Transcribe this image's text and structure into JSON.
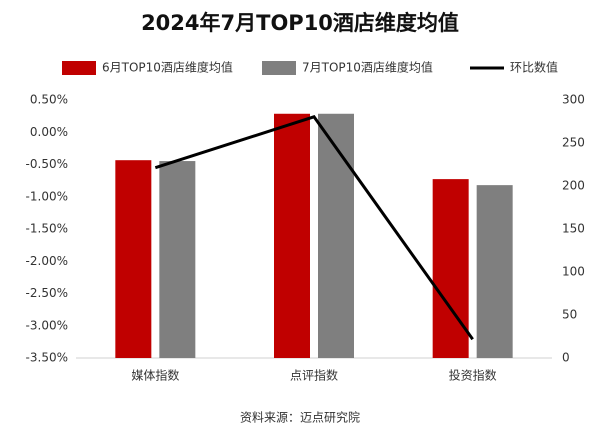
{
  "chart_data": {
    "type": "bar",
    "title": "2024年7月TOP10酒店维度均值",
    "categories": [
      "媒体指数",
      "点评指数",
      "投资指数"
    ],
    "series": [
      {
        "name": "6月TOP10酒店维度均值",
        "color": "#c00000",
        "axis": "y2",
        "values": [
          230,
          284,
          208
        ]
      },
      {
        "name": "7月TOP10酒店维度均值",
        "color": "#7f7f7f",
        "axis": "y2",
        "values": [
          229,
          284,
          201
        ]
      },
      {
        "name": "环比数值",
        "type": "line",
        "color": "#000000",
        "values": [
          -0.55,
          0.24,
          -3.21
        ]
      }
    ],
    "ylim": [
      -3.5,
      0.5
    ],
    "yticks": [
      {
        "value": 0.5,
        "label": "0.50%"
      },
      {
        "value": 0,
        "label": "0.00%"
      },
      {
        "value": -0.5,
        "label": "-0.50%"
      },
      {
        "value": -1,
        "label": "-1.00%"
      },
      {
        "value": -1.5,
        "label": "-1.50%"
      },
      {
        "value": -2,
        "label": "-2.00%"
      },
      {
        "value": -2.5,
        "label": "-2.50%"
      },
      {
        "value": -3,
        "label": "-3.00%"
      },
      {
        "value": -3.5,
        "label": "-3.50%"
      }
    ],
    "y2lim": [
      0,
      300
    ],
    "y2ticks": [
      0,
      50,
      100,
      150,
      200,
      250,
      300
    ],
    "grid": false,
    "legend": "top",
    "source": "资料来源：迈点研究院"
  }
}
